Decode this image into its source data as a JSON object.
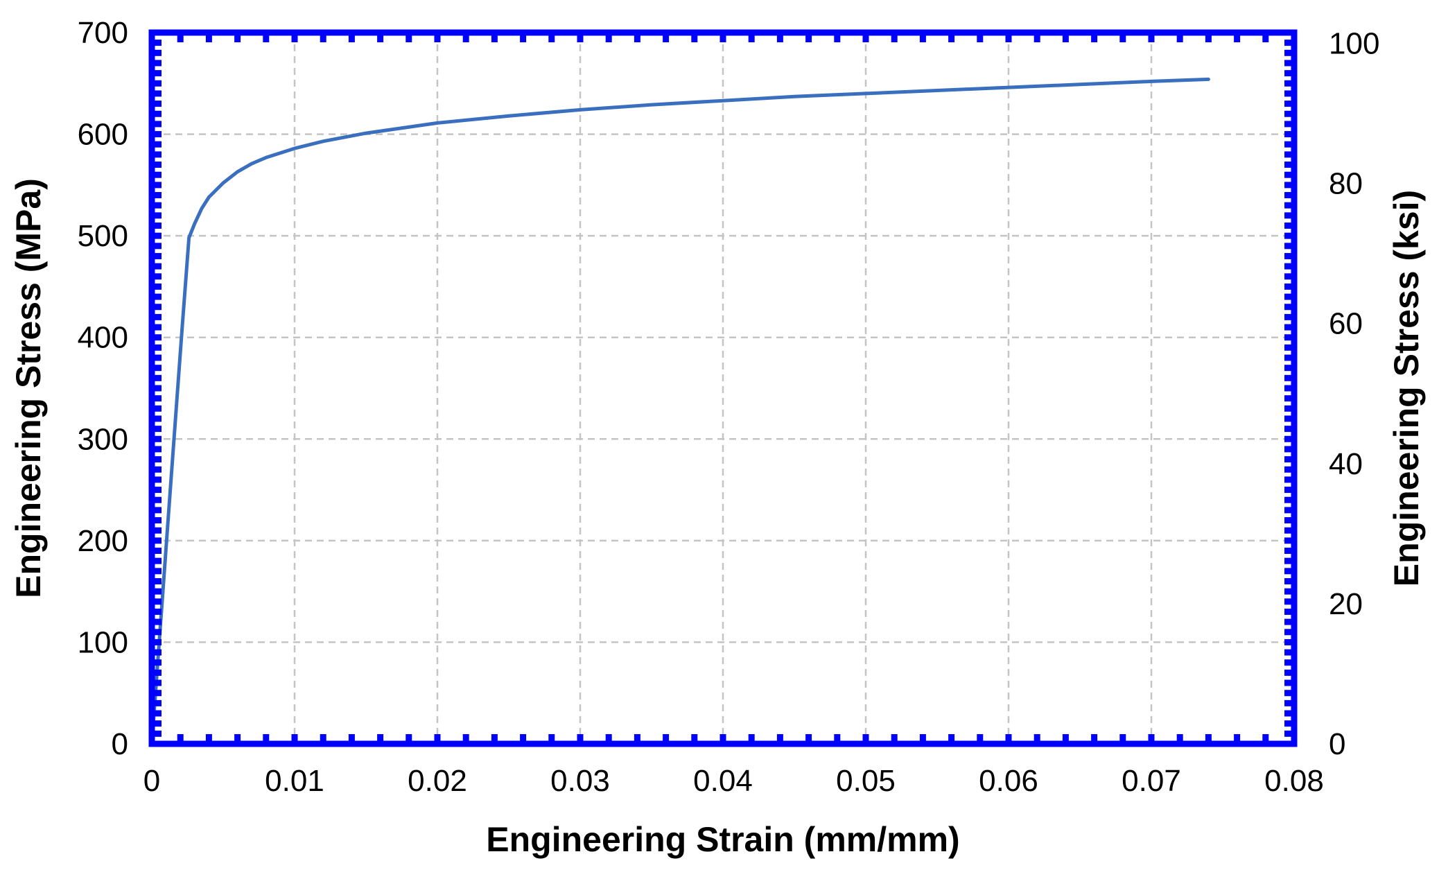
{
  "chart_data": {
    "type": "line",
    "title": "",
    "xlabel": "Engineering Strain (mm/mm)",
    "ylabel": "Engineering Stress (MPa)",
    "y2label": "Engineering Stress (ksi)",
    "xlim": [
      0,
      0.08
    ],
    "ylim": [
      0,
      700
    ],
    "y2lim": [
      0,
      101.526
    ],
    "x_ticks": [
      0,
      0.01,
      0.02,
      0.03,
      0.04,
      0.05,
      0.06,
      0.07,
      0.08
    ],
    "x_tick_labels": [
      "0",
      "0.01",
      "0.02",
      "0.03",
      "0.04",
      "0.05",
      "0.06",
      "0.07",
      "0.08"
    ],
    "y_ticks": [
      0,
      100,
      200,
      300,
      400,
      500,
      600,
      700
    ],
    "y_tick_labels": [
      "0",
      "100",
      "200",
      "300",
      "400",
      "500",
      "600",
      "700"
    ],
    "y2_ticks": [
      0,
      20,
      40,
      60,
      80,
      100
    ],
    "y2_tick_labels": [
      "0",
      "20",
      "40",
      "60",
      "80",
      "100"
    ],
    "grid": true,
    "legend": "none",
    "frame_color": "#0000ff",
    "series": [
      {
        "color": "#3a6fbf",
        "x": [
          0,
          0.0007,
          0.0014,
          0.0021,
          0.0026,
          0.003,
          0.0035,
          0.004,
          0.005,
          0.006,
          0.007,
          0.008,
          0.01,
          0.012,
          0.015,
          0.02,
          0.025,
          0.03,
          0.035,
          0.04,
          0.045,
          0.05,
          0.055,
          0.06,
          0.065,
          0.07,
          0.074
        ],
        "y": [
          0,
          135,
          270,
          405,
          498,
          512,
          527,
          538,
          552,
          563,
          571,
          577,
          586,
          593,
          601,
          611,
          618,
          624,
          629,
          633,
          637,
          640,
          643,
          646,
          649,
          652,
          654
        ]
      }
    ]
  }
}
